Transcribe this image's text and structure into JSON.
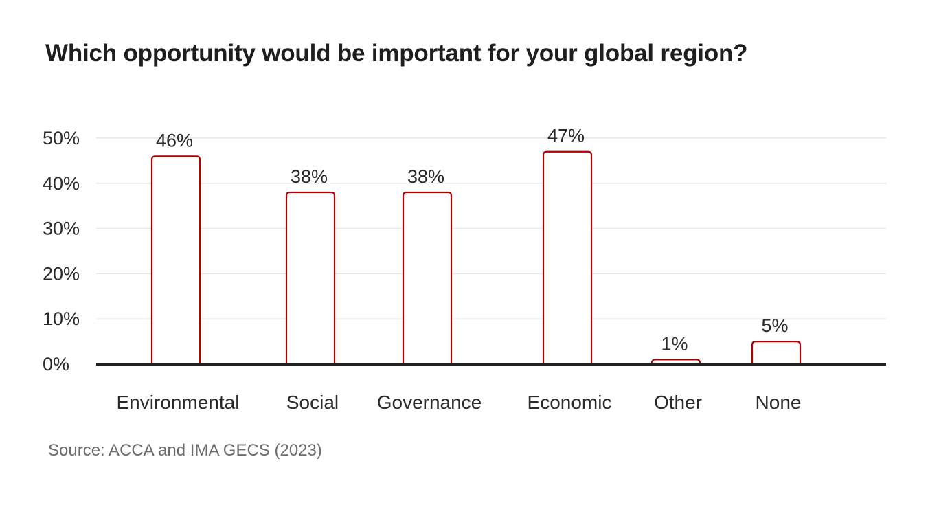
{
  "title": "Which opportunity would be important for your global region?",
  "source": "Source: ACCA and IMA GECS (2023)",
  "colors": {
    "bar_stroke": "#b00000",
    "bar_fill": "#ffffff",
    "grid": "#e6e6e6",
    "axis": "#222222"
  },
  "chart_data": {
    "type": "bar",
    "categories": [
      "Environmental",
      "Social",
      "Governance",
      "Economic",
      "Other",
      "None"
    ],
    "values": [
      46,
      38,
      38,
      47,
      1,
      5
    ],
    "data_labels": [
      "46%",
      "38%",
      "38%",
      "47%",
      "1%",
      "5%"
    ],
    "yticks": [
      0,
      10,
      20,
      30,
      40,
      50
    ],
    "ytick_labels": [
      "0%",
      "10%",
      "20%",
      "30%",
      "40%",
      "50%"
    ],
    "ylim": [
      0,
      50
    ],
    "grid": true,
    "legend": false,
    "xlabel": "",
    "ylabel": ""
  }
}
